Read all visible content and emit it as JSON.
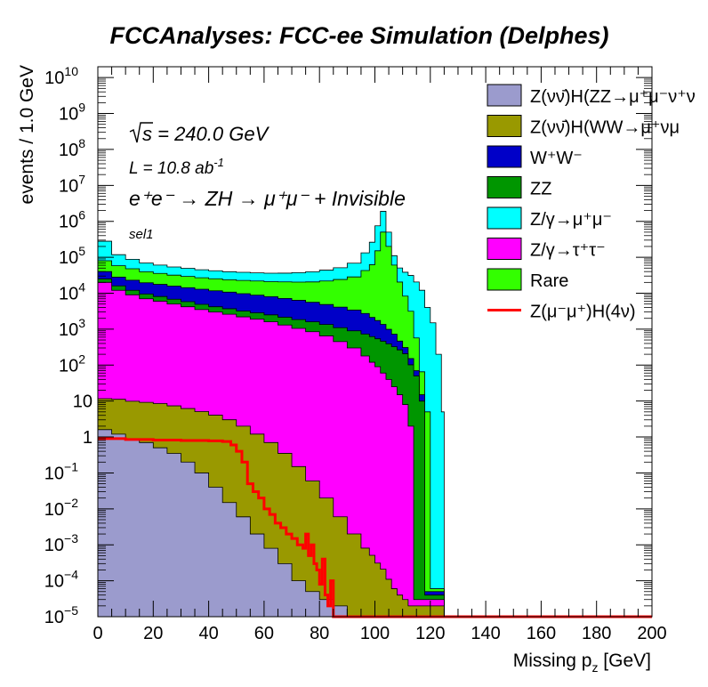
{
  "chart_data": {
    "type": "area",
    "title": "FCCAnalyses: FCC-ee Simulation (Delphes)",
    "xlabel_main": "Missing p",
    "xlabel_sub": "z",
    "xlabel_unit": " [GeV]",
    "ylabel": "events / 1.0 GeV",
    "xlim": [
      0,
      200
    ],
    "ylim": [
      1e-05,
      20000000000.0
    ],
    "yscale": "log",
    "stacked": true,
    "x_ticks": [
      "0",
      "20",
      "40",
      "60",
      "80",
      "100",
      "120",
      "140",
      "160",
      "180",
      "200"
    ],
    "y_ticks": [
      {
        "base": "10",
        "exp": "10"
      },
      {
        "base": "10",
        "exp": "9"
      },
      {
        "base": "10",
        "exp": "8"
      },
      {
        "base": "10",
        "exp": "7"
      },
      {
        "base": "10",
        "exp": "6"
      },
      {
        "base": "10",
        "exp": "5"
      },
      {
        "base": "10",
        "exp": "4"
      },
      {
        "base": "10",
        "exp": "3"
      },
      {
        "base": "10",
        "exp": "2"
      },
      {
        "base": "10",
        "exp": ""
      },
      {
        "base": "1",
        "exp": ""
      },
      {
        "base": "10",
        "exp": "−1"
      },
      {
        "base": "10",
        "exp": "−2"
      },
      {
        "base": "10",
        "exp": "−3"
      },
      {
        "base": "10",
        "exp": "−4"
      },
      {
        "base": "10",
        "exp": "−5"
      }
    ],
    "annotations": {
      "sqrt_s": "s",
      "energy": " = 240.0 GeV",
      "lumi_pre": "L = 10.8 ab",
      "lumi_exp": "-1",
      "process": "e⁺e⁻ → ZH → μ⁺μ⁻ + Invisible",
      "selection": "sel1"
    },
    "legend_position": "top-right",
    "legend": [
      {
        "label": "Z(νν̄)H(ZZ→μ⁺μ⁻ν⁺ν",
        "color": "#9b9bcd",
        "kind": "fill"
      },
      {
        "label": "Z(νν̄)H(WW→μ⁺νμ",
        "color": "#999900",
        "kind": "fill"
      },
      {
        "label": "W⁺W⁻",
        "color": "#0000c8",
        "kind": "fill"
      },
      {
        "label": "ZZ",
        "color": "#009600",
        "kind": "fill"
      },
      {
        "label": "Z/γ→μ⁺μ⁻",
        "color": "#00ffff",
        "kind": "fill"
      },
      {
        "label": "Z/γ→τ⁺τ⁻",
        "color": "#ff00ff",
        "kind": "fill"
      },
      {
        "label": "Rare",
        "color": "#33ff00",
        "kind": "fill"
      },
      {
        "label": "Z(μ⁻μ⁺)H(4ν)",
        "color": "#ff0000",
        "kind": "line"
      }
    ],
    "x": [
      0,
      5,
      10,
      15,
      20,
      25,
      30,
      35,
      40,
      45,
      50,
      55,
      60,
      65,
      70,
      75,
      80,
      85,
      90,
      95,
      98,
      100,
      102,
      104,
      106,
      108,
      110,
      112,
      114,
      116,
      118,
      120,
      122,
      124,
      125
    ],
    "series": [
      {
        "name": "Z(νν̄)H(ZZ→μ⁺μ⁻ν⁺ν",
        "color": "#9b9bcd",
        "values": [
          1.6,
          1.2,
          0.9,
          0.7,
          0.5,
          0.35,
          0.2,
          0.1,
          0.04,
          0.015,
          0.006,
          0.002,
          0.0008,
          0.0003,
          0.0001,
          5e-05,
          3e-05,
          2e-05,
          1e-05,
          1e-05,
          1e-05,
          1e-05,
          1e-05,
          1e-05,
          1e-05,
          1e-05,
          1e-05,
          1e-05,
          1e-05,
          1e-05,
          1e-05,
          1e-05,
          1e-05,
          1e-05,
          1e-05
        ]
      },
      {
        "name": "Z(νν̄)H(WW→μ⁺νμ",
        "color": "#999900",
        "values": [
          10,
          10,
          9,
          8.5,
          8,
          7,
          6,
          5,
          4,
          3,
          2,
          1.2,
          0.7,
          0.35,
          0.15,
          0.06,
          0.02,
          0.006,
          0.002,
          0.0008,
          0.0005,
          0.0003,
          0.0002,
          0.0001,
          5e-05,
          3e-05,
          2e-05,
          1e-05,
          1e-05,
          1e-05,
          1e-05,
          1e-05,
          1e-05,
          1e-05,
          1e-05
        ]
      },
      {
        "name": "Z/γ→τ⁺τ⁻",
        "color": "#ff00ff",
        "values": [
          20000,
          12000,
          9000,
          7000,
          6000,
          5000,
          4200,
          3500,
          3000,
          2600,
          2200,
          1900,
          1600,
          1300,
          1050,
          850,
          650,
          450,
          300,
          180,
          120,
          90,
          60,
          40,
          25,
          15,
          8,
          2,
          1e-05,
          1e-05,
          1e-05,
          1e-05,
          1e-05,
          1e-05,
          1e-05
        ]
      },
      {
        "name": "ZZ",
        "color": "#009600",
        "values": [
          5000,
          4000,
          3000,
          2500,
          2100,
          1800,
          1600,
          1400,
          1200,
          1100,
          1000,
          950,
          900,
          850,
          800,
          750,
          700,
          650,
          600,
          550,
          500,
          450,
          400,
          350,
          300,
          250,
          200,
          100,
          50,
          10,
          1e-05,
          1e-05,
          1e-05,
          1e-05,
          1e-05
        ]
      },
      {
        "name": "W⁺W⁻",
        "color": "#0000c8",
        "values": [
          15000,
          12000,
          11000,
          10000,
          9500,
          9000,
          8500,
          8000,
          7500,
          7000,
          6500,
          6000,
          5500,
          5000,
          4500,
          4000,
          3500,
          3000,
          2500,
          2000,
          1500,
          1200,
          900,
          600,
          400,
          200,
          100,
          50,
          20,
          5,
          1e-05,
          1e-05,
          1e-05,
          1e-05,
          1e-05
        ]
      },
      {
        "name": "Rare",
        "color": "#33ff00",
        "values": [
          40000,
          30000,
          25000,
          20000,
          18000,
          16000,
          15000,
          14000,
          13500,
          13000,
          13000,
          13000,
          13000,
          13500,
          14000,
          15000,
          17000,
          20000,
          25000,
          40000,
          60000,
          150000,
          500000,
          200000,
          60000,
          20000,
          8000,
          3000,
          500,
          50,
          5,
          1e-05,
          1e-05,
          1e-05,
          1e-05
        ]
      },
      {
        "name": "Z/γ→μ⁺μ⁻",
        "color": "#00ffff",
        "values": [
          200000,
          60000,
          40000,
          30000,
          25000,
          22000,
          20000,
          18000,
          17000,
          16000,
          15500,
          15000,
          15000,
          15500,
          17000,
          19000,
          22000,
          27000,
          40000,
          90000,
          200000,
          600000,
          1400000,
          300000,
          50000,
          30000,
          30000,
          28000,
          20000,
          12000,
          4000,
          1500,
          200,
          5,
          1e-05
        ]
      }
    ],
    "signal": {
      "name": "Z(μ⁻μ⁺)H(4ν)",
      "color": "#ff0000",
      "x": [
        0,
        10,
        20,
        30,
        40,
        45,
        48,
        50,
        52,
        54,
        56,
        58,
        60,
        62,
        64,
        66,
        68,
        70,
        72,
        74,
        75,
        76,
        77,
        78,
        79,
        80,
        81,
        82,
        83,
        84,
        85,
        200
      ],
      "y": [
        0.9,
        0.85,
        0.82,
        0.8,
        0.78,
        0.75,
        0.6,
        0.4,
        0.2,
        0.05,
        0.03,
        0.02,
        0.01,
        0.007,
        0.004,
        0.003,
        0.002,
        0.0015,
        0.001,
        0.0008,
        0.002,
        0.0005,
        0.001,
        0.0003,
        0.0002,
        8e-05,
        0.0004,
        4e-05,
        2e-05,
        0.0001,
        1e-05,
        1e-05
      ]
    }
  }
}
